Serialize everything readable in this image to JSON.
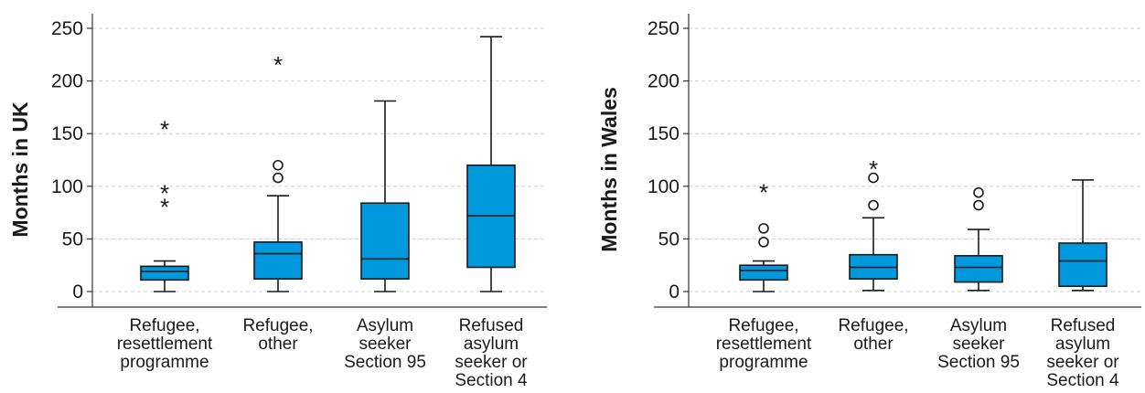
{
  "colors": {
    "box_fill": "#0099dd",
    "line": "#1a1a1a",
    "grid": "#cfcfcf"
  },
  "chart_data": [
    {
      "type": "boxplot",
      "title": "",
      "xlabel": "",
      "ylabel": "Months in UK",
      "ylim": [
        0,
        250
      ],
      "yticks": [
        0,
        50,
        100,
        150,
        200,
        250
      ],
      "grid": true,
      "categories": [
        [
          "Refugee,",
          "resettlement",
          "programme"
        ],
        [
          "Refugee,",
          "other"
        ],
        [
          "Asylum",
          "seeker",
          "Section 95"
        ],
        [
          "Refused",
          "asylum",
          "seeker or",
          "Section 4"
        ]
      ],
      "boxes": [
        {
          "whisker_low": 0,
          "q1": 11,
          "median": 19,
          "q3": 24,
          "whisker_high": 29,
          "circle_outliers": [],
          "star_outliers": [
            82,
            95,
            156
          ]
        },
        {
          "whisker_low": 0,
          "q1": 12,
          "median": 36,
          "q3": 47,
          "whisker_high": 91,
          "circle_outliers": [
            108,
            120
          ],
          "star_outliers": [
            217
          ]
        },
        {
          "whisker_low": 0,
          "q1": 12,
          "median": 31,
          "q3": 84,
          "whisker_high": 181,
          "circle_outliers": [],
          "star_outliers": []
        },
        {
          "whisker_low": 0,
          "q1": 23,
          "median": 72,
          "q3": 120,
          "whisker_high": 242,
          "circle_outliers": [],
          "star_outliers": []
        }
      ]
    },
    {
      "type": "boxplot",
      "title": "",
      "xlabel": "",
      "ylabel": "Months in Wales",
      "ylim": [
        0,
        250
      ],
      "yticks": [
        0,
        50,
        100,
        150,
        200,
        250
      ],
      "grid": true,
      "categories": [
        [
          "Refugee,",
          "resettlement",
          "programme"
        ],
        [
          "Refugee,",
          "other"
        ],
        [
          "Asylum",
          "seeker",
          "Section 95"
        ],
        [
          "Refused",
          "asylum",
          "seeker or",
          "Section 4"
        ]
      ],
      "boxes": [
        {
          "whisker_low": 0,
          "q1": 11,
          "median": 20,
          "q3": 25,
          "whisker_high": 29,
          "circle_outliers": [
            47,
            60
          ],
          "star_outliers": [
            96
          ]
        },
        {
          "whisker_low": 1,
          "q1": 12,
          "median": 23,
          "q3": 35,
          "whisker_high": 70,
          "circle_outliers": [
            82,
            108
          ],
          "star_outliers": [
            118
          ]
        },
        {
          "whisker_low": 1,
          "q1": 9,
          "median": 23,
          "q3": 34,
          "whisker_high": 59,
          "circle_outliers": [
            82,
            94
          ],
          "star_outliers": []
        },
        {
          "whisker_low": 1,
          "q1": 5,
          "median": 29,
          "q3": 46,
          "whisker_high": 106,
          "circle_outliers": [],
          "star_outliers": []
        }
      ]
    }
  ]
}
